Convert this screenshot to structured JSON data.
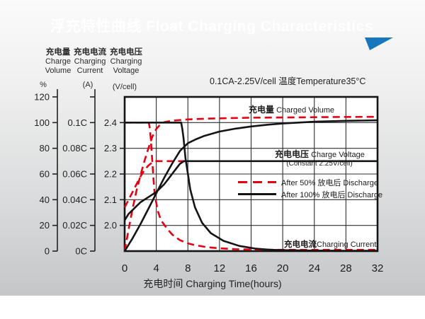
{
  "banner": {
    "title": "浮充特性曲线 Float Charging Characteristics",
    "color": "#1777bd"
  },
  "condition": "0.1CA-2.25V/cell   温度Temperature35°C",
  "chart_data": {
    "type": "line",
    "title": "浮充特性曲线 Float Charging Characteristics",
    "grid": true,
    "legend_position": "inside-middle-right",
    "x_axis": {
      "title": "充电时间 Charging Time(hours)",
      "range": [
        0,
        32
      ],
      "ticks": [
        0,
        4,
        8,
        12,
        16,
        20,
        24,
        28,
        32
      ]
    },
    "y_axes": {
      "volume": {
        "name_cn": "充电量",
        "name_en_line1": "Charge",
        "name_en_line2": "Volume",
        "unit": "%",
        "range": [
          0,
          120
        ],
        "ticks": [
          {
            "label": "120",
            "value": 120
          },
          {
            "label": "100",
            "value": 100
          },
          {
            "label": "80",
            "value": 80
          },
          {
            "label": "60",
            "value": 60
          },
          {
            "label": "40",
            "value": 40
          },
          {
            "label": "20",
            "value": 20
          },
          {
            "label": "0",
            "value": 0
          }
        ]
      },
      "current": {
        "name_cn": "充电电流",
        "name_en_line1": "Charging",
        "name_en_line2": "Current",
        "unit": "(A)",
        "range": [
          0,
          0.12
        ],
        "ticks": [
          {
            "label": "0.1C",
            "value": 0.1
          },
          {
            "label": "0.08C",
            "value": 0.08
          },
          {
            "label": "0.06C",
            "value": 0.06
          },
          {
            "label": "0.04C",
            "value": 0.04
          },
          {
            "label": "0.02C",
            "value": 0.02
          },
          {
            "label": "0C",
            "value": 0
          }
        ]
      },
      "voltage": {
        "name_cn": "充电电压",
        "name_en_line1": "Charging",
        "name_en_line2": "Voltage",
        "unit": "(V/cell)",
        "range": [
          1.9,
          2.5
        ],
        "ticks": [
          {
            "label": "2.4",
            "value": 2.4
          },
          {
            "label": "2.3",
            "value": 2.3
          },
          {
            "label": "2.2",
            "value": 2.2
          },
          {
            "label": "2.1",
            "value": 2.1
          },
          {
            "label": "2.0",
            "value": 2.0
          }
        ]
      }
    },
    "annotations": {
      "charged_volume": {
        "cn": "充电量",
        "en": " Charged Volume"
      },
      "charge_voltage": {
        "cn": "充电电压",
        "en": " Charge Voltage",
        "sub": "(Constant 2.25V/cell)"
      },
      "charging_current": {
        "cn": "充电电流",
        "en": "Charging Current"
      }
    },
    "legend": [
      {
        "style": "dashed-red",
        "label": "After 50%  放电后 Discharge"
      },
      {
        "style": "solid-black",
        "label": "After 100%  放电后 Discharge"
      }
    ],
    "colors": {
      "after_50": "#e60012",
      "after_100": "#141414"
    },
    "series": [
      {
        "name": "charged_volume_after_50_discharge",
        "axis": "volume",
        "style": "dashed-red",
        "points": [
          [
            0,
            0
          ],
          [
            0.5,
            17
          ],
          [
            1,
            33
          ],
          [
            1.5,
            47
          ],
          [
            2,
            59
          ],
          [
            2.5,
            70
          ],
          [
            3,
            80
          ],
          [
            3.5,
            89
          ],
          [
            4,
            95
          ],
          [
            4.5,
            98.5
          ],
          [
            5,
            100.3
          ],
          [
            6,
            101.5
          ],
          [
            8,
            102.5
          ],
          [
            10,
            103
          ],
          [
            12,
            103.3
          ],
          [
            16,
            103.8
          ],
          [
            20,
            104
          ],
          [
            24,
            104.2
          ],
          [
            28,
            104.4
          ],
          [
            32,
            104.5
          ]
        ]
      },
      {
        "name": "charged_volume_after_100_discharge",
        "axis": "volume",
        "style": "solid-black",
        "points": [
          [
            0,
            0
          ],
          [
            1,
            10
          ],
          [
            2,
            21
          ],
          [
            3,
            33
          ],
          [
            4,
            45
          ],
          [
            5,
            57
          ],
          [
            6,
            68
          ],
          [
            7,
            78
          ],
          [
            8,
            84
          ],
          [
            9,
            87
          ],
          [
            10,
            89.5
          ],
          [
            12,
            93
          ],
          [
            14,
            95.3
          ],
          [
            16,
            97
          ],
          [
            18,
            98.3
          ],
          [
            20,
            99.3
          ],
          [
            24,
            100.7
          ],
          [
            28,
            101.4
          ],
          [
            32,
            101.8
          ]
        ]
      },
      {
        "name": "charge_voltage_after_50_discharge",
        "axis": "voltage",
        "style": "dashed-red",
        "points": [
          [
            0,
            2.07
          ],
          [
            0.5,
            2.1
          ],
          [
            1,
            2.13
          ],
          [
            1.5,
            2.16
          ],
          [
            2,
            2.19
          ],
          [
            2.5,
            2.215
          ],
          [
            3,
            2.233
          ],
          [
            3.5,
            2.245
          ],
          [
            4,
            2.25
          ],
          [
            8,
            2.25
          ]
        ]
      },
      {
        "name": "charge_voltage_after_100_discharge",
        "axis": "voltage",
        "style": "solid-black",
        "points": [
          [
            0,
            2.02
          ],
          [
            0.5,
            2.045
          ],
          [
            1,
            2.06
          ],
          [
            1.5,
            2.075
          ],
          [
            2,
            2.09
          ],
          [
            3,
            2.11
          ],
          [
            4,
            2.13
          ],
          [
            4.5,
            2.145
          ],
          [
            5,
            2.16
          ],
          [
            5.5,
            2.18
          ],
          [
            6,
            2.2
          ],
          [
            6.5,
            2.22
          ],
          [
            7,
            2.24
          ],
          [
            7.5,
            2.25
          ],
          [
            32,
            2.25
          ]
        ]
      },
      {
        "name": "charging_current_after_50_discharge",
        "axis": "current",
        "style": "dashed-red",
        "points": [
          [
            0,
            0.1
          ],
          [
            3.05,
            0.1
          ],
          [
            3.15,
            0.097
          ],
          [
            3.3,
            0.088
          ],
          [
            3.5,
            0.07
          ],
          [
            3.65,
            0.056
          ],
          [
            3.8,
            0.044
          ],
          [
            4.2,
            0.031
          ],
          [
            4.6,
            0.024
          ],
          [
            5.3,
            0.018
          ],
          [
            6,
            0.013
          ],
          [
            7,
            0.0085
          ],
          [
            8,
            0.006
          ],
          [
            9,
            0.0045
          ],
          [
            10.5,
            0.003
          ],
          [
            12,
            0.0022
          ],
          [
            14,
            0.0015
          ],
          [
            16,
            0.0012
          ],
          [
            20,
            0.001
          ],
          [
            26,
            0.001
          ],
          [
            32,
            0.001
          ]
        ]
      },
      {
        "name": "charging_current_after_100_discharge",
        "axis": "current",
        "style": "solid-black",
        "points": [
          [
            0,
            0.1
          ],
          [
            7.15,
            0.1
          ],
          [
            7.3,
            0.095
          ],
          [
            7.45,
            0.088
          ],
          [
            7.7,
            0.072
          ],
          [
            8,
            0.06
          ],
          [
            8.3,
            0.048
          ],
          [
            8.9,
            0.034
          ],
          [
            9.8,
            0.022
          ],
          [
            10.9,
            0.014
          ],
          [
            12.5,
            0.008
          ],
          [
            14.5,
            0.004
          ],
          [
            16.5,
            0.002
          ],
          [
            18.5,
            0.001
          ],
          [
            20,
            0.0007
          ],
          [
            24,
            0.0004
          ],
          [
            28,
            0.0003
          ],
          [
            32,
            0.0002
          ]
        ]
      }
    ]
  }
}
